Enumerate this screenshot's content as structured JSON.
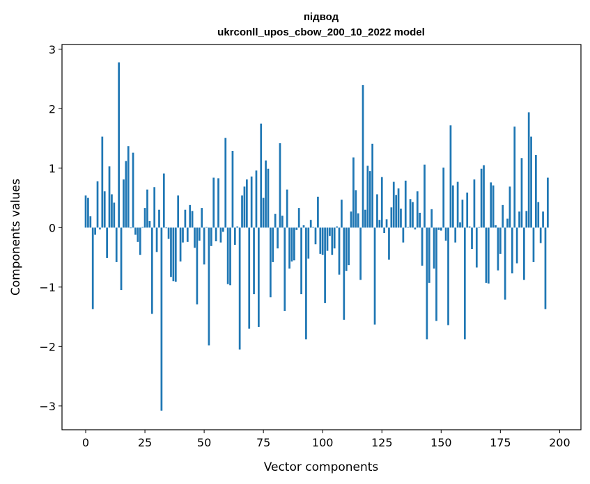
{
  "chart_data": {
    "type": "bar",
    "title_line1": "підвод",
    "title_line2": "ukrconll_upos_cbow_200_10_2022 model",
    "xlabel": "Vector components",
    "ylabel": "Components values",
    "xlim": [
      -10,
      209
    ],
    "ylim": [
      -3.4,
      3.08
    ],
    "xticks": [
      0,
      25,
      50,
      75,
      100,
      125,
      150,
      175,
      200
    ],
    "yticks": [
      -3,
      -2,
      -1,
      0,
      1,
      2,
      3
    ],
    "ytick_labels": [
      "−3",
      "−2",
      "−1",
      "0",
      "1",
      "2",
      "3"
    ],
    "grid": false,
    "bar_color": "#1f77b4",
    "values": [
      0.54,
      0.5,
      0.19,
      -1.37,
      -0.12,
      0.78,
      -0.03,
      1.53,
      0.61,
      -0.51,
      1.03,
      0.56,
      0.42,
      -0.58,
      2.78,
      -1.05,
      0.81,
      1.12,
      1.37,
      -0.01,
      1.26,
      -0.12,
      -0.24,
      -0.46,
      0.01,
      0.33,
      0.64,
      0.11,
      -1.45,
      0.68,
      -0.41,
      0.3,
      -3.08,
      0.91,
      -0.01,
      -0.19,
      -0.83,
      -0.9,
      -0.91,
      0.54,
      -0.57,
      -0.25,
      0.3,
      -0.24,
      0.38,
      0.28,
      -0.34,
      -1.29,
      -0.22,
      0.33,
      -0.62,
      0.01,
      -1.98,
      -0.31,
      0.84,
      -0.23,
      0.83,
      -0.25,
      -0.07,
      1.51,
      -0.95,
      -0.97,
      1.29,
      -0.29,
      0.02,
      -2.05,
      0.54,
      0.69,
      0.81,
      -1.7,
      0.86,
      -1.12,
      0.96,
      -1.67,
      1.75,
      0.5,
      1.13,
      0.99,
      -1.17,
      -0.58,
      0.23,
      -0.35,
      1.42,
      0.2,
      -1.4,
      0.64,
      -0.69,
      -0.57,
      -0.55,
      -0.04,
      0.33,
      -1.12,
      0.04,
      -1.88,
      -0.52,
      0.13,
      0.01,
      -0.28,
      0.52,
      -0.44,
      -0.46,
      -1.27,
      -0.39,
      -0.14,
      -0.46,
      -0.35,
      0.02,
      -0.79,
      0.47,
      -1.55,
      -0.73,
      -0.63,
      0.27,
      1.18,
      0.63,
      0.24,
      -0.88,
      2.4,
      0.3,
      1.04,
      0.95,
      1.41,
      -1.63,
      0.56,
      0.13,
      0.85,
      -0.09,
      0.14,
      -0.54,
      0.34,
      0.77,
      0.55,
      0.66,
      0.32,
      -0.25,
      0.79,
      0.01,
      0.48,
      0.43,
      -0.03,
      0.61,
      0.25,
      -0.64,
      1.06,
      -1.88,
      -0.93,
      0.31,
      -0.69,
      -1.57,
      -0.04,
      -0.05,
      1.01,
      -0.22,
      -1.64,
      1.72,
      0.71,
      -0.25,
      0.77,
      0.09,
      0.47,
      -1.88,
      0.59,
      0.02,
      -0.36,
      0.81,
      -0.67,
      0.01,
      0.99,
      1.05,
      -0.93,
      -0.94,
      0.76,
      0.71,
      0.04,
      -0.72,
      -0.44,
      0.38,
      -1.21,
      0.15,
      0.69,
      -0.77,
      1.7,
      -0.6,
      0.27,
      1.17,
      -0.88,
      0.28,
      1.94,
      1.53,
      -0.58,
      1.22,
      0.43,
      -0.26,
      0.27,
      -1.37,
      0.84
    ]
  }
}
